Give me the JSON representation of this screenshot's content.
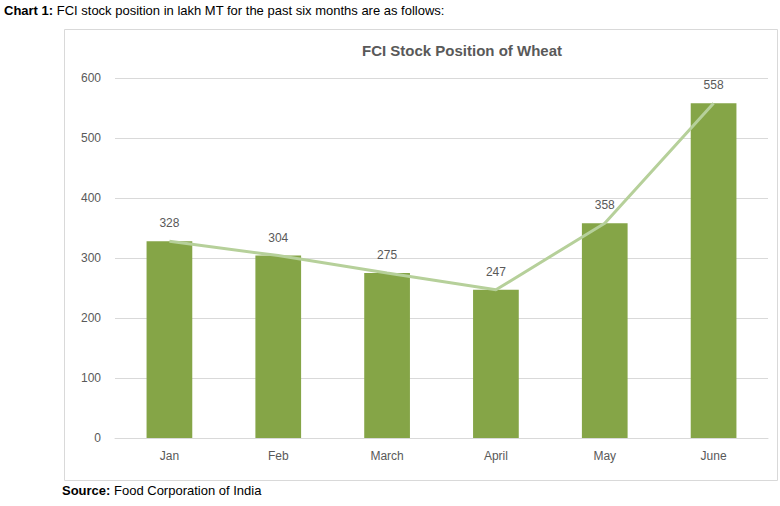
{
  "chart_data": {
    "type": "bar",
    "title": "FCI Stock Position of Wheat",
    "annotations": [
      "Chart 1: FCI stock position in lakh MT for the past six months are as follows:",
      "Source: Food Corporation of India"
    ],
    "categories": [
      "Jan",
      "Feb",
      "March",
      "April",
      "May",
      "June"
    ],
    "series": [
      {
        "type": "bar",
        "color": "#85a547",
        "values": [
          328,
          304,
          275,
          247,
          358,
          558
        ],
        "data_labels": true
      },
      {
        "type": "line",
        "color": "#b6d09a",
        "values": [
          328,
          304,
          275,
          247,
          358,
          558
        ]
      }
    ],
    "ylim": [
      0,
      600
    ],
    "yticks": [
      0,
      100,
      200,
      300,
      400,
      500,
      600
    ],
    "grid": true
  }
}
